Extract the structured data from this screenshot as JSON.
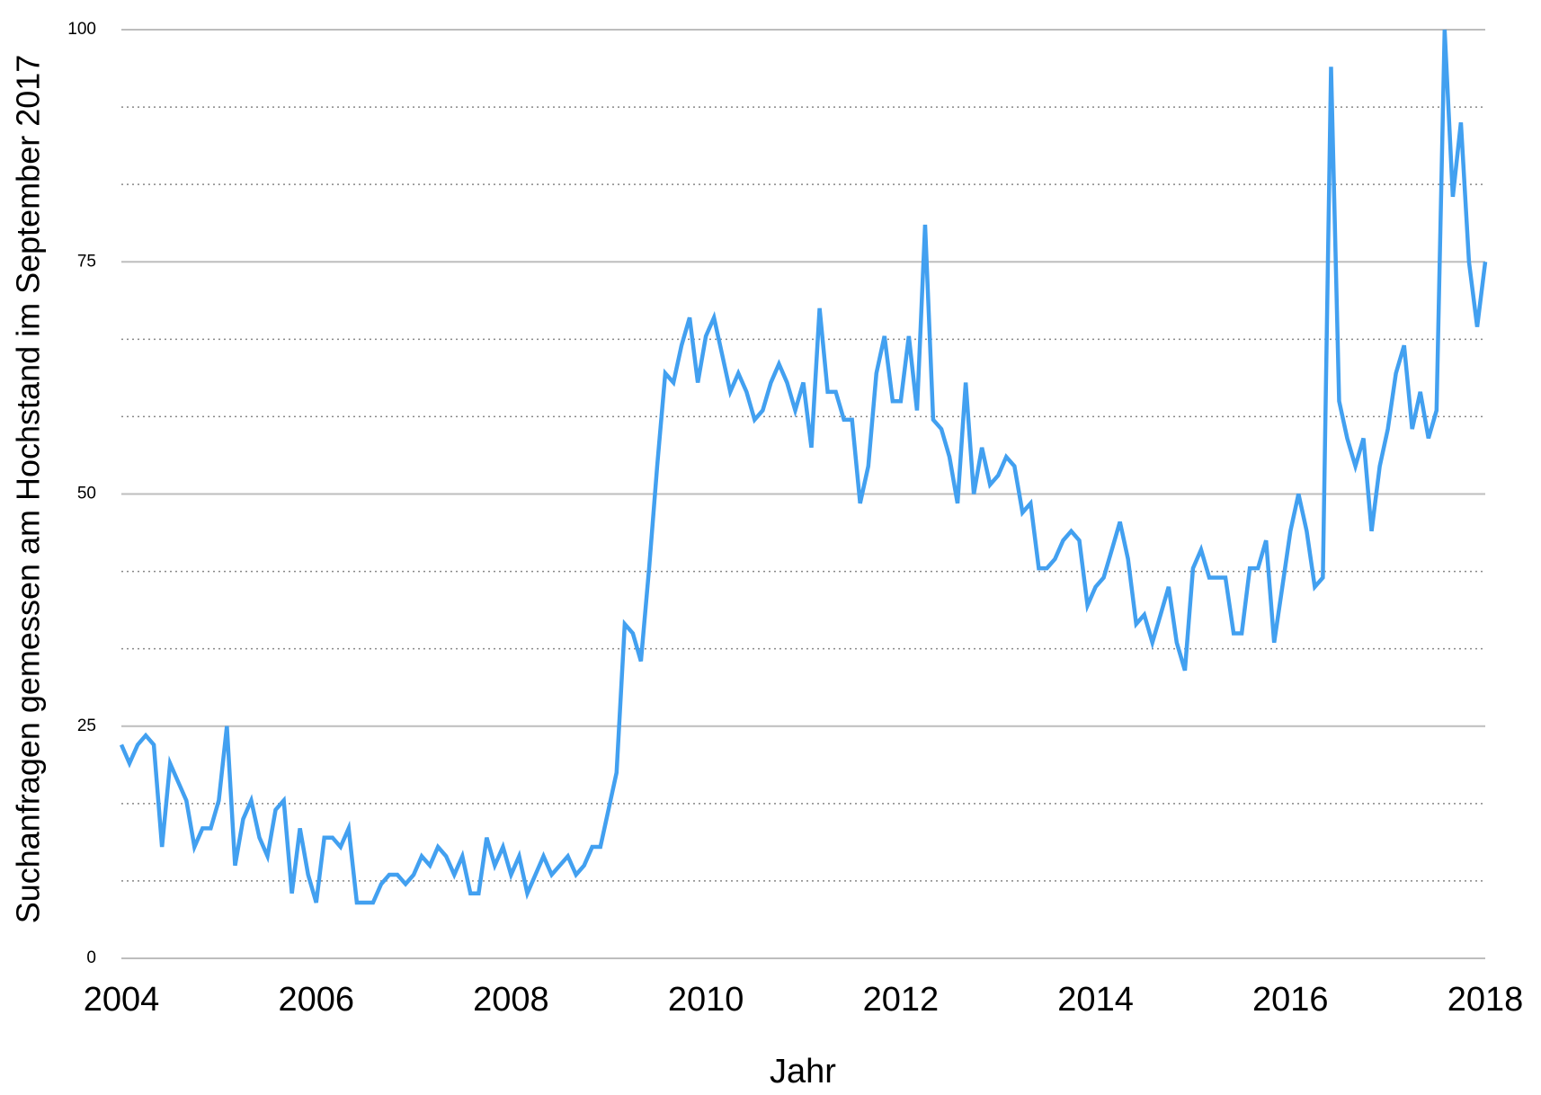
{
  "chart_data": {
    "type": "line",
    "x_label": "Jahr",
    "y_label": "Suchanfragen gemessen am Hochstand im September 2017",
    "xlim": [
      2004,
      2018
    ],
    "xticks": [
      2004,
      2006,
      2008,
      2010,
      2012,
      2014,
      2016,
      2018
    ],
    "ylim": [
      0,
      100
    ],
    "yticks": [
      0,
      25,
      50,
      75,
      100
    ],
    "yminor": [
      8.333,
      16.667,
      33.333,
      41.667,
      58.333,
      66.667,
      83.333,
      91.667
    ],
    "grid": true,
    "x": [
      2004,
      2004.083,
      2004.167,
      2004.25,
      2004.333,
      2004.417,
      2004.5,
      2004.583,
      2004.667,
      2004.75,
      2004.833,
      2004.917,
      2005,
      2005.083,
      2005.167,
      2005.25,
      2005.333,
      2005.417,
      2005.5,
      2005.583,
      2005.667,
      2005.75,
      2005.833,
      2005.917,
      2006,
      2006.083,
      2006.167,
      2006.25,
      2006.333,
      2006.417,
      2006.5,
      2006.583,
      2006.667,
      2006.75,
      2006.833,
      2006.917,
      2007,
      2007.083,
      2007.167,
      2007.25,
      2007.333,
      2007.417,
      2007.5,
      2007.583,
      2007.667,
      2007.75,
      2007.833,
      2007.917,
      2008,
      2008.083,
      2008.167,
      2008.25,
      2008.333,
      2008.417,
      2008.5,
      2008.583,
      2008.667,
      2008.75,
      2008.833,
      2008.917,
      2009,
      2009.083,
      2009.167,
      2009.25,
      2009.333,
      2009.417,
      2009.5,
      2009.583,
      2009.667,
      2009.75,
      2009.833,
      2009.917,
      2010,
      2010.083,
      2010.167,
      2010.25,
      2010.333,
      2010.417,
      2010.5,
      2010.583,
      2010.667,
      2010.75,
      2010.833,
      2010.917,
      2011,
      2011.083,
      2011.167,
      2011.25,
      2011.333,
      2011.417,
      2011.5,
      2011.583,
      2011.667,
      2011.75,
      2011.833,
      2011.917,
      2012,
      2012.083,
      2012.167,
      2012.25,
      2012.333,
      2012.417,
      2012.5,
      2012.583,
      2012.667,
      2012.75,
      2012.833,
      2012.917,
      2013,
      2013.083,
      2013.167,
      2013.25,
      2013.333,
      2013.417,
      2013.5,
      2013.583,
      2013.667,
      2013.75,
      2013.833,
      2013.917,
      2014,
      2014.083,
      2014.167,
      2014.25,
      2014.333,
      2014.417,
      2014.5,
      2014.583,
      2014.667,
      2014.75,
      2014.833,
      2014.917,
      2015,
      2015.083,
      2015.167,
      2015.25,
      2015.333,
      2015.417,
      2015.5,
      2015.583,
      2015.667,
      2015.75,
      2015.833,
      2015.917,
      2016,
      2016.083,
      2016.167,
      2016.25,
      2016.333,
      2016.417,
      2016.5,
      2016.583,
      2016.667,
      2016.75,
      2016.833,
      2016.917,
      2017,
      2017.083,
      2017.167,
      2017.25,
      2017.333,
      2017.417,
      2017.5,
      2017.583,
      2017.667,
      2017.75,
      2017.833,
      2017.917,
      2018
    ],
    "series": [
      {
        "color": "#42a0f0",
        "values": [
          23,
          21,
          23,
          24,
          23,
          12,
          21,
          19,
          17,
          12,
          14,
          14,
          17,
          25,
          10,
          15,
          17,
          13,
          11,
          16,
          17,
          7,
          14,
          9,
          6,
          13,
          13,
          12,
          14,
          6,
          6,
          6,
          8,
          9,
          9,
          8,
          9,
          11,
          10,
          12,
          11,
          9,
          11,
          7,
          7,
          13,
          10,
          12,
          9,
          11,
          7,
          9,
          11,
          9,
          10,
          11,
          9,
          10,
          12,
          12,
          16,
          20,
          36,
          35,
          32,
          42,
          53,
          63,
          62,
          66,
          69,
          62,
          67,
          69,
          65,
          61,
          63,
          61,
          58,
          59,
          62,
          64,
          62,
          59,
          62,
          55,
          70,
          61,
          61,
          58,
          58,
          49,
          53,
          63,
          67,
          60,
          60,
          67,
          59,
          79,
          58,
          57,
          54,
          49,
          62,
          50,
          55,
          51,
          52,
          54,
          53,
          48,
          49,
          42,
          42,
          43,
          45,
          46,
          45,
          38,
          40,
          41,
          44,
          47,
          43,
          36,
          37,
          34,
          37,
          40,
          34,
          31,
          42,
          44,
          41,
          41,
          41,
          35,
          35,
          42,
          42,
          45,
          34,
          40,
          46,
          50,
          46,
          40,
          41,
          96,
          60,
          56,
          53,
          56,
          46,
          53,
          57,
          63,
          66,
          57,
          61,
          56,
          59,
          100,
          82,
          90,
          75,
          68,
          75
        ]
      }
    ]
  }
}
